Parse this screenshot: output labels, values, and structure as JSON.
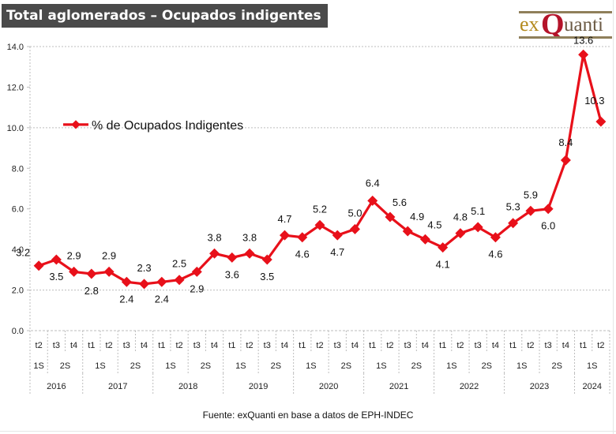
{
  "title": "Total aglomerados – Ocupados indigentes",
  "logo": {
    "part1": "ex",
    "part2": "Q",
    "part3": "uanti"
  },
  "footer": "Fuente: exQuanti en base a datos de EPH-INDEC",
  "colors": {
    "series": "#e8101a",
    "title_bg": "#4a4a4a",
    "grid": "#bdbdbd"
  },
  "chart_data": {
    "type": "line",
    "title": "Total aglomerados – Ocupados indigentes",
    "xlabel": "",
    "ylabel": "",
    "ylim": [
      0,
      14
    ],
    "yticks": [
      "0.0",
      "2.0",
      "4.0",
      "6.0",
      "8.0",
      "10.0",
      "12.0",
      "14.0"
    ],
    "ytick_values": [
      0,
      2,
      4,
      6,
      8,
      10,
      12,
      14
    ],
    "grid_lines_at": [
      2,
      10,
      14
    ],
    "legend": {
      "entries": [
        "% de Ocupados Indigentes"
      ],
      "placement": "top-left"
    },
    "x": [
      "2016 t2",
      "2016 t3",
      "2016 t4",
      "2017 t1",
      "2017 t2",
      "2017 t3",
      "2017 t4",
      "2018 t1",
      "2018 t2",
      "2018 t3",
      "2018 t4",
      "2019 t1",
      "2019 t2",
      "2019 t3",
      "2019 t4",
      "2020 t1",
      "2020 t2",
      "2020 t3",
      "2020 t4",
      "2021 t1",
      "2021 t2",
      "2021 t3",
      "2021 t4",
      "2022 t1",
      "2022 t2",
      "2022 t3",
      "2022 t4",
      "2023 t1",
      "2023 t2",
      "2023 t3",
      "2023 t4",
      "2024 t1",
      "2024 t2"
    ],
    "quarter_labels": [
      "t2",
      "t3",
      "t4",
      "t1",
      "t2",
      "t3",
      "t4",
      "t1",
      "t2",
      "t3",
      "t4",
      "t1",
      "t2",
      "t3",
      "t4",
      "t1",
      "t2",
      "t3",
      "t4",
      "t1",
      "t2",
      "t3",
      "t4",
      "t1",
      "t2",
      "t3",
      "t4",
      "t1",
      "t2",
      "t3",
      "t4",
      "t1",
      "t2"
    ],
    "semester_groups": [
      {
        "label": "1S",
        "span": 1
      },
      {
        "label": "2S",
        "span": 2
      },
      {
        "label": "1S",
        "span": 2
      },
      {
        "label": "2S",
        "span": 2
      },
      {
        "label": "1S",
        "span": 2
      },
      {
        "label": "2S",
        "span": 2
      },
      {
        "label": "1S",
        "span": 2
      },
      {
        "label": "2S",
        "span": 2
      },
      {
        "label": "1S",
        "span": 2
      },
      {
        "label": "2S",
        "span": 2
      },
      {
        "label": "1S",
        "span": 2
      },
      {
        "label": "2S",
        "span": 2
      },
      {
        "label": "1S",
        "span": 2
      },
      {
        "label": "2S",
        "span": 2
      },
      {
        "label": "1S",
        "span": 2
      },
      {
        "label": "2S",
        "span": 2
      },
      {
        "label": "1S",
        "span": 2
      }
    ],
    "year_groups": [
      {
        "label": "2016",
        "span": 3
      },
      {
        "label": "2017",
        "span": 4
      },
      {
        "label": "2018",
        "span": 4
      },
      {
        "label": "2019",
        "span": 4
      },
      {
        "label": "2020",
        "span": 4
      },
      {
        "label": "2021",
        "span": 4
      },
      {
        "label": "2022",
        "span": 4
      },
      {
        "label": "2023",
        "span": 4
      },
      {
        "label": "2024",
        "span": 2
      }
    ],
    "series": [
      {
        "name": "% de Ocupados Indigentes",
        "values": [
          3.2,
          3.5,
          2.9,
          2.8,
          2.9,
          2.4,
          2.3,
          2.4,
          2.5,
          2.9,
          3.8,
          3.6,
          3.8,
          3.5,
          4.7,
          4.6,
          5.2,
          4.7,
          5.0,
          6.4,
          5.6,
          4.9,
          4.5,
          4.1,
          4.8,
          5.1,
          4.6,
          5.3,
          5.9,
          6.0,
          8.4,
          13.6,
          10.3
        ],
        "labels": [
          "3.2",
          "3.5",
          "2.9",
          "2.8",
          "2.9",
          "2.4",
          "2.3",
          "2.4",
          "2.5",
          "2.9",
          "3.8",
          "3.6",
          "3.8",
          "3.5",
          "4.7",
          "4.6",
          "5.2",
          "4.7",
          "5.0",
          "6.4",
          "5.6",
          "4.9",
          "4.5",
          "4.1",
          "4.8",
          "5.1",
          "4.6",
          "5.3",
          "5.9",
          "6.0",
          "8.4",
          "13.6",
          "10.3"
        ],
        "label_positions": [
          "above",
          "below",
          "above",
          "below",
          "above",
          "below",
          "above",
          "below",
          "above",
          "below",
          "above",
          "below",
          "above",
          "below",
          "above",
          "below",
          "above",
          "below",
          "above",
          "above",
          "above",
          "above",
          "above",
          "below",
          "above",
          "above",
          "below",
          "above",
          "above",
          "below",
          "above",
          "above",
          "above"
        ]
      }
    ]
  }
}
